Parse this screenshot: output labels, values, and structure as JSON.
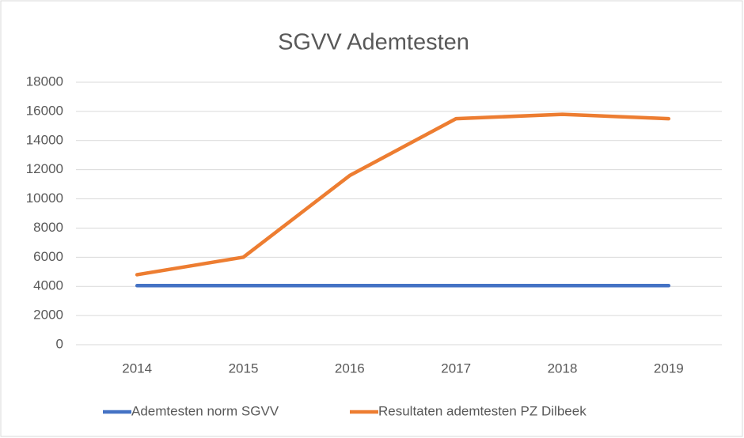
{
  "chart_data": {
    "type": "line",
    "title": "SGVV Ademtesten",
    "categories": [
      "2014",
      "2015",
      "2016",
      "2017",
      "2018",
      "2019"
    ],
    "series": [
      {
        "name": "Ademtesten norm SGVV",
        "color": "#4472c4",
        "values": [
          4050,
          4050,
          4050,
          4050,
          4050,
          4050
        ]
      },
      {
        "name": "Resultaten ademtesten PZ Dilbeek",
        "color": "#ed7d31",
        "values": [
          4800,
          6000,
          11600,
          15500,
          15800,
          15500
        ]
      }
    ],
    "ylim": [
      0,
      18000
    ],
    "yticks": [
      0,
      2000,
      4000,
      6000,
      8000,
      10000,
      12000,
      14000,
      16000,
      18000
    ],
    "grid": true,
    "legend": "bottom"
  }
}
